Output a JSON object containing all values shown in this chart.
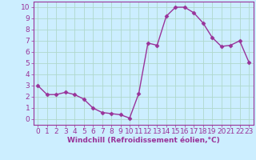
{
  "x": [
    0,
    1,
    2,
    3,
    4,
    5,
    6,
    7,
    8,
    9,
    10,
    11,
    12,
    13,
    14,
    15,
    16,
    17,
    18,
    19,
    20,
    21,
    22,
    23
  ],
  "y": [
    3.0,
    2.2,
    2.2,
    2.4,
    2.2,
    1.8,
    1.0,
    0.6,
    0.5,
    0.4,
    0.1,
    2.3,
    6.8,
    6.6,
    9.2,
    10.0,
    10.0,
    9.5,
    8.6,
    7.3,
    6.5,
    6.6,
    7.0,
    5.1
  ],
  "line_color": "#993399",
  "marker": "D",
  "marker_size": 2.5,
  "bg_color": "#cceeff",
  "grid_color": "#aaddcc",
  "xlabel": "Windchill (Refroidissement éolien,°C)",
  "xlim": [
    -0.5,
    23.5
  ],
  "ylim": [
    -0.5,
    10.5
  ],
  "xticks": [
    0,
    1,
    2,
    3,
    4,
    5,
    6,
    7,
    8,
    9,
    10,
    11,
    12,
    13,
    14,
    15,
    16,
    17,
    18,
    19,
    20,
    21,
    22,
    23
  ],
  "yticks": [
    0,
    1,
    2,
    3,
    4,
    5,
    6,
    7,
    8,
    9,
    10
  ],
  "tick_fontsize": 6.5,
  "xlabel_fontsize": 6.5
}
